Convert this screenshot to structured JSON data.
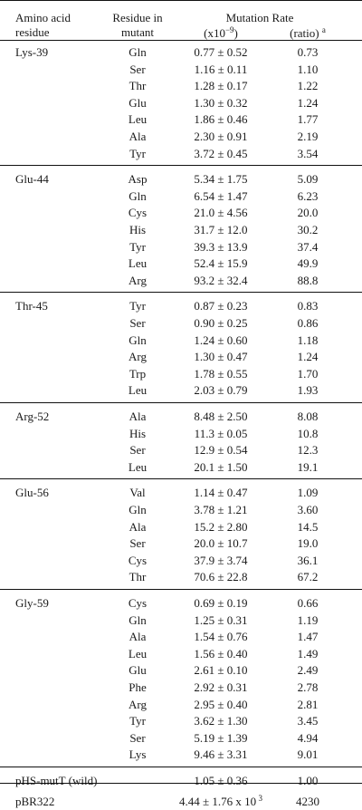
{
  "header": {
    "col1_line1": "Amino acid",
    "col1_line2": "residue",
    "col2_line1": "Residue in",
    "col2_line2": "mutant",
    "mutation_rate": "Mutation Rate",
    "sub_rate": "(x10",
    "sub_rate_exp": "−9",
    "sub_rate_close": ")",
    "sub_ratio": "(ratio)",
    "sub_ratio_sup": "a"
  },
  "groups": [
    {
      "residue": "Lys-39",
      "rows": [
        {
          "mutant": "Gln",
          "rate": "0.77 ± 0.52",
          "ratio": "0.73"
        },
        {
          "mutant": "Ser",
          "rate": "1.16 ± 0.11",
          "ratio": "1.10"
        },
        {
          "mutant": "Thr",
          "rate": "1.28 ± 0.17",
          "ratio": "1.22"
        },
        {
          "mutant": "Glu",
          "rate": "1.30 ± 0.32",
          "ratio": "1.24"
        },
        {
          "mutant": "Leu",
          "rate": "1.86 ± 0.46",
          "ratio": "1.77"
        },
        {
          "mutant": "Ala",
          "rate": "2.30 ± 0.91",
          "ratio": "2.19"
        },
        {
          "mutant": "Tyr",
          "rate": "3.72 ± 0.45",
          "ratio": "3.54"
        }
      ]
    },
    {
      "residue": "Glu-44",
      "rows": [
        {
          "mutant": "Asp",
          "rate": "5.34 ± 1.75",
          "ratio": "5.09"
        },
        {
          "mutant": "Gln",
          "rate": "6.54 ± 1.47",
          "ratio": "6.23"
        },
        {
          "mutant": "Cys",
          "rate": "21.0 ± 4.56",
          "ratio": "20.0"
        },
        {
          "mutant": "His",
          "rate": "31.7 ± 12.0",
          "ratio": "30.2"
        },
        {
          "mutant": "Tyr",
          "rate": "39.3 ± 13.9",
          "ratio": "37.4"
        },
        {
          "mutant": "Leu",
          "rate": "52.4 ± 15.9",
          "ratio": "49.9"
        },
        {
          "mutant": "Arg",
          "rate": "93.2 ± 32.4",
          "ratio": "88.8"
        }
      ]
    },
    {
      "residue": "Thr-45",
      "rows": [
        {
          "mutant": "Tyr",
          "rate": "0.87 ± 0.23",
          "ratio": "0.83"
        },
        {
          "mutant": "Ser",
          "rate": "0.90 ± 0.25",
          "ratio": "0.86"
        },
        {
          "mutant": "Gln",
          "rate": "1.24 ± 0.60",
          "ratio": "1.18"
        },
        {
          "mutant": "Arg",
          "rate": "1.30 ± 0.47",
          "ratio": "1.24"
        },
        {
          "mutant": "Trp",
          "rate": "1.78 ± 0.55",
          "ratio": "1.70"
        },
        {
          "mutant": "Leu",
          "rate": "2.03 ± 0.79",
          "ratio": "1.93"
        }
      ]
    },
    {
      "residue": "Arg-52",
      "rows": [
        {
          "mutant": "Ala",
          "rate": "8.48 ± 2.50",
          "ratio": "8.08"
        },
        {
          "mutant": "His",
          "rate": "11.3 ± 0.05",
          "ratio": "10.8"
        },
        {
          "mutant": "Ser",
          "rate": "12.9 ± 0.54",
          "ratio": "12.3"
        },
        {
          "mutant": "Leu",
          "rate": "20.1 ± 1.50",
          "ratio": "19.1"
        }
      ]
    },
    {
      "residue": "Glu-56",
      "rows": [
        {
          "mutant": "Val",
          "rate": "1.14 ± 0.47",
          "ratio": "1.09"
        },
        {
          "mutant": "Gln",
          "rate": "3.78 ± 1.21",
          "ratio": "3.60"
        },
        {
          "mutant": "Ala",
          "rate": "15.2 ± 2.80",
          "ratio": "14.5"
        },
        {
          "mutant": "Ser",
          "rate": "20.0 ± 10.7",
          "ratio": "19.0"
        },
        {
          "mutant": "Cys",
          "rate": "37.9 ± 3.74",
          "ratio": "36.1"
        },
        {
          "mutant": "Thr",
          "rate": "70.6 ± 22.8",
          "ratio": "67.2"
        }
      ]
    },
    {
      "residue": "Gly-59",
      "rows": [
        {
          "mutant": "Cys",
          "rate": "0.69 ± 0.19",
          "ratio": "0.66"
        },
        {
          "mutant": "Gln",
          "rate": "1.25 ± 0.31",
          "ratio": "1.19"
        },
        {
          "mutant": "Ala",
          "rate": "1.54 ± 0.76",
          "ratio": "1.47"
        },
        {
          "mutant": "Leu",
          "rate": "1.56 ± 0.40",
          "ratio": "1.49"
        },
        {
          "mutant": "Glu",
          "rate": "2.61 ± 0.10",
          "ratio": "2.49"
        },
        {
          "mutant": "Phe",
          "rate": "2.92 ± 0.31",
          "ratio": "2.78"
        },
        {
          "mutant": "Arg",
          "rate": "2.95 ± 0.40",
          "ratio": "2.81"
        },
        {
          "mutant": "Tyr",
          "rate": "3.62 ± 1.30",
          "ratio": "3.45"
        },
        {
          "mutant": "Ser",
          "rate": "5.19 ± 1.39",
          "ratio": "4.94"
        },
        {
          "mutant": "Lys",
          "rate": "9.46 ± 3.31",
          "ratio": "9.01"
        }
      ]
    }
  ],
  "footer_rows": [
    {
      "label": "pHS-mutT (wild)",
      "rate": "1.05 ± 0.36",
      "rate_exp": "",
      "ratio": "1.00"
    },
    {
      "label": "pBR322",
      "rate": "4.44 ± 1.76 x 10",
      "rate_exp": "3",
      "ratio": "4230"
    }
  ]
}
